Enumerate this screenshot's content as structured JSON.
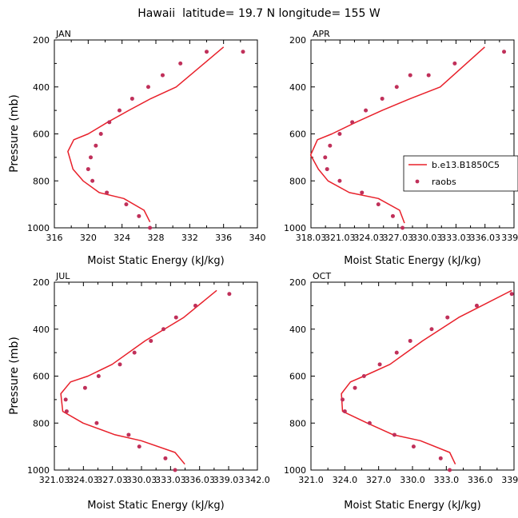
{
  "figure": {
    "title": "Hawaii  latitude= 19.7 N longitude= 155 W",
    "ylabel": "Pressure (mb)",
    "colors": {
      "model": "#e8202a",
      "obs": "#c0305a",
      "axis": "#000000"
    }
  },
  "chart_data": [
    {
      "type": "line",
      "panel": "JAN",
      "title": "JAN",
      "xlabel": "Moist Static Energy (kJ/kg)",
      "ylabel": "Pressure (mb)",
      "xlim": [
        316,
        340
      ],
      "ylim": [
        200,
        1000
      ],
      "y_inverted": true,
      "xticks": [
        316,
        320,
        324,
        328,
        332,
        336,
        340
      ],
      "xtick_labels": [
        "316",
        "320",
        "324",
        "328",
        "332",
        "336",
        "340"
      ],
      "yticks": [
        200,
        400,
        600,
        800,
        1000
      ],
      "ytick_labels": [
        "200",
        "400",
        "600",
        "800",
        "1000"
      ],
      "legend": null,
      "series": [
        {
          "name": "b.e13.B1850C5",
          "kind": "line",
          "x": [
            327.3,
            326.6,
            324.2,
            321.3,
            319.4,
            318.2,
            317.6,
            318.3,
            320.0,
            322.3,
            324.8,
            327.4,
            330.4,
            333.7,
            336.0
          ],
          "y": [
            975,
            925,
            875,
            850,
            800,
            750,
            675,
            625,
            600,
            550,
            500,
            450,
            400,
            300,
            230
          ]
        },
        {
          "name": "raobs",
          "kind": "scatter",
          "x": [
            327.3,
            326.0,
            324.5,
            322.2,
            320.5,
            320.0,
            320.3,
            320.9,
            321.5,
            322.5,
            323.7,
            325.2,
            327.1,
            328.8,
            330.9,
            334.0,
            338.3
          ],
          "y": [
            1000,
            950,
            900,
            850,
            800,
            750,
            700,
            650,
            600,
            550,
            500,
            450,
            400,
            350,
            300,
            250,
            250
          ]
        }
      ]
    },
    {
      "type": "line",
      "panel": "APR",
      "title": "APR",
      "xlabel": "Moist Static Energy (kJ/kg)",
      "ylabel": "",
      "xlim": [
        318.03,
        339.03
      ],
      "ylim": [
        200,
        1000
      ],
      "y_inverted": true,
      "xticks": [
        318.03,
        321.03,
        324.03,
        327.03,
        330.03,
        333.03,
        336.03,
        339.03
      ],
      "xtick_labels": [
        "318.03",
        "321.03",
        "324.03",
        "327.03",
        "330.03",
        "333.03",
        "336.03",
        "339.0"
      ],
      "yticks": [
        200,
        400,
        600,
        800,
        1000
      ],
      "ytick_labels": [
        "200",
        "400",
        "600",
        "800",
        "1000"
      ],
      "legend": {
        "placement": "right",
        "entries": [
          {
            "label": "b.e13.B1850C5",
            "kind": "line"
          },
          {
            "label": "raobs",
            "kind": "marker"
          }
        ]
      },
      "series": [
        {
          "name": "b.e13.B1850C5",
          "kind": "line",
          "x": [
            327.7,
            327.2,
            325.0,
            322.0,
            319.8,
            318.8,
            318.0,
            318.7,
            320.2,
            322.7,
            325.4,
            328.3,
            331.4,
            336.0
          ],
          "y": [
            980,
            925,
            875,
            850,
            800,
            750,
            690,
            625,
            600,
            550,
            500,
            450,
            400,
            230
          ]
        },
        {
          "name": "raobs",
          "kind": "scatter",
          "x": [
            327.5,
            326.5,
            325.0,
            323.3,
            321.0,
            319.7,
            319.5,
            320.0,
            321.0,
            322.3,
            323.7,
            325.4,
            326.9,
            328.3,
            330.2,
            332.9,
            338.0
          ],
          "y": [
            1000,
            950,
            900,
            850,
            800,
            750,
            700,
            650,
            600,
            550,
            500,
            450,
            400,
            350,
            350,
            300,
            250
          ]
        }
      ]
    },
    {
      "type": "line",
      "panel": "JUL",
      "title": "JUL",
      "xlabel": "Moist Static Energy (kJ/kg)",
      "ylabel": "Pressure (mb)",
      "xlim": [
        321.03,
        342.0
      ],
      "ylim": [
        200,
        1000
      ],
      "y_inverted": true,
      "xticks": [
        321.03,
        324.03,
        327.03,
        330.03,
        333.03,
        336.03,
        339.03,
        342.0
      ],
      "xtick_labels": [
        "321.03",
        "324.03",
        "327.03",
        "330.03",
        "333.03",
        "336.03",
        "339.03",
        "342.0"
      ],
      "yticks": [
        200,
        400,
        600,
        800,
        1000
      ],
      "ytick_labels": [
        "200",
        "400",
        "600",
        "800",
        "1000"
      ],
      "legend": null,
      "series": [
        {
          "name": "b.e13.B1850C5",
          "kind": "line",
          "x": [
            334.5,
            333.5,
            330.0,
            327.3,
            324.0,
            321.9,
            321.7,
            322.7,
            324.5,
            327.0,
            330.4,
            334.4,
            337.8
          ],
          "y": [
            975,
            925,
            875,
            850,
            800,
            750,
            675,
            625,
            600,
            550,
            450,
            350,
            235
          ]
        },
        {
          "name": "raobs",
          "kind": "scatter",
          "x": [
            333.5,
            332.5,
            329.8,
            328.7,
            325.4,
            322.3,
            322.2,
            324.2,
            325.6,
            327.8,
            329.3,
            331.0,
            332.3,
            333.6,
            335.6,
            339.1
          ],
          "y": [
            1000,
            950,
            900,
            850,
            800,
            750,
            700,
            650,
            600,
            550,
            500,
            450,
            400,
            350,
            300,
            250
          ]
        }
      ]
    },
    {
      "type": "line",
      "panel": "OCT",
      "title": "OCT",
      "xlabel": "Moist Static Energy (kJ/kg)",
      "ylabel": "",
      "xlim": [
        321.0,
        339.0
      ],
      "ylim": [
        200,
        1000
      ],
      "y_inverted": true,
      "xticks": [
        321,
        324,
        327,
        330,
        333,
        336,
        339
      ],
      "xtick_labels": [
        "321.0",
        "324.0",
        "327.0",
        "330.0",
        "333.0",
        "336.0",
        "339.0"
      ],
      "yticks": [
        200,
        400,
        600,
        800,
        1000
      ],
      "ytick_labels": [
        "200",
        "400",
        "600",
        "800",
        "1000"
      ],
      "legend": null,
      "series": [
        {
          "name": "b.e13.B1850C5",
          "kind": "line",
          "x": [
            333.8,
            333.3,
            330.7,
            328.3,
            326.0,
            323.8,
            323.7,
            324.5,
            325.7,
            328.0,
            330.9,
            334.1,
            338.8
          ],
          "y": [
            975,
            925,
            875,
            850,
            800,
            750,
            675,
            625,
            600,
            550,
            450,
            350,
            235
          ]
        },
        {
          "name": "raobs",
          "kind": "scatter",
          "x": [
            333.3,
            332.5,
            330.1,
            328.4,
            326.2,
            324.0,
            323.8,
            324.9,
            325.7,
            327.1,
            328.6,
            329.8,
            331.7,
            333.1,
            335.7,
            338.8
          ],
          "y": [
            1000,
            950,
            900,
            850,
            800,
            750,
            700,
            650,
            600,
            550,
            500,
            450,
            400,
            350,
            300,
            250
          ]
        }
      ]
    }
  ]
}
